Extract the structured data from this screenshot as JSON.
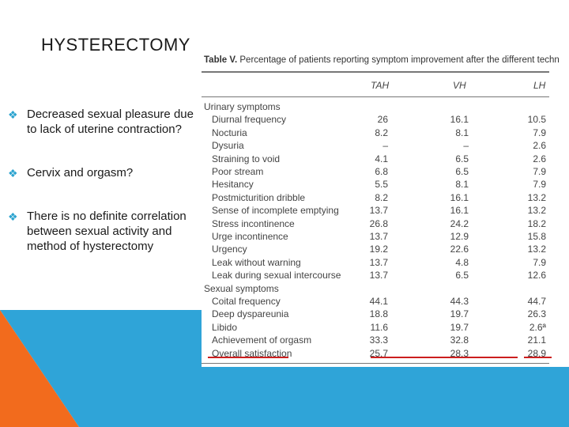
{
  "title": "HYSTERECTOMY",
  "bullets": [
    "Decreased sexual pleasure due to lack of uterine contraction?",
    "Cervix and orgasm?",
    "There is no definite correlation between sexual activity and method of hysterectomy"
  ],
  "bullet_icon": "diamond-bullet-icon",
  "colors": {
    "bullet": "#2ba3cf",
    "orange": "#f26b1d",
    "blue": "#2fa4d8",
    "red_underline": "#cc1f1f"
  },
  "table": {
    "caption_bold": "Table V.",
    "caption_text": " Percentage of patients reporting symptom improvement after the different techn",
    "columns": [
      "TAH",
      "VH",
      "LH"
    ],
    "rows": [
      {
        "label": "Urinary symptoms",
        "section": true,
        "tah": "",
        "vh": "",
        "lh": ""
      },
      {
        "label": "Diurnal frequency",
        "tah": "26",
        "vh": "16.1",
        "lh": "10.5"
      },
      {
        "label": "Nocturia",
        "tah": "8.2",
        "vh": "8.1",
        "lh": "7.9"
      },
      {
        "label": "Dysuria",
        "tah": "–",
        "vh": "–",
        "lh": "2.6"
      },
      {
        "label": "Straining to void",
        "tah": "4.1",
        "vh": "6.5",
        "lh": "2.6"
      },
      {
        "label": "Poor stream",
        "tah": "6.8",
        "vh": "6.5",
        "lh": "7.9"
      },
      {
        "label": "Hesitancy",
        "tah": "5.5",
        "vh": "8.1",
        "lh": "7.9"
      },
      {
        "label": "Postmicturition dribble",
        "tah": "8.2",
        "vh": "16.1",
        "lh": "13.2"
      },
      {
        "label": "Sense of incomplete emptying",
        "tah": "13.7",
        "vh": "16.1",
        "lh": "13.2"
      },
      {
        "label": "Stress incontinence",
        "tah": "26.8",
        "vh": "24.2",
        "lh": "18.2"
      },
      {
        "label": "Urge incontinence",
        "tah": "13.7",
        "vh": "12.9",
        "lh": "15.8"
      },
      {
        "label": "Urgency",
        "tah": "19.2",
        "vh": "22.6",
        "lh": "13.2"
      },
      {
        "label": "Leak without warning",
        "tah": "13.7",
        "vh": "4.8",
        "lh": "7.9"
      },
      {
        "label": "Leak during sexual intercourse",
        "tah": "13.7",
        "vh": "6.5",
        "lh": "12.6"
      },
      {
        "label": "Sexual symptoms",
        "section": true,
        "tah": "",
        "vh": "",
        "lh": ""
      },
      {
        "label": "Coital frequency",
        "tah": "44.1",
        "vh": "44.3",
        "lh": "44.7"
      },
      {
        "label": "Deep dyspareunia",
        "tah": "18.8",
        "vh": "19.7",
        "lh": "26.3"
      },
      {
        "label": "Libido",
        "tah": "11.6",
        "vh": "19.7",
        "lh": "2.6ª"
      },
      {
        "label": "Achievement of orgasm",
        "tah": "33.3",
        "vh": "32.8",
        "lh": "21.1"
      },
      {
        "label": "Overall satisfaction",
        "tah": "25.7",
        "vh": "28.3",
        "lh": "28.9"
      }
    ]
  }
}
